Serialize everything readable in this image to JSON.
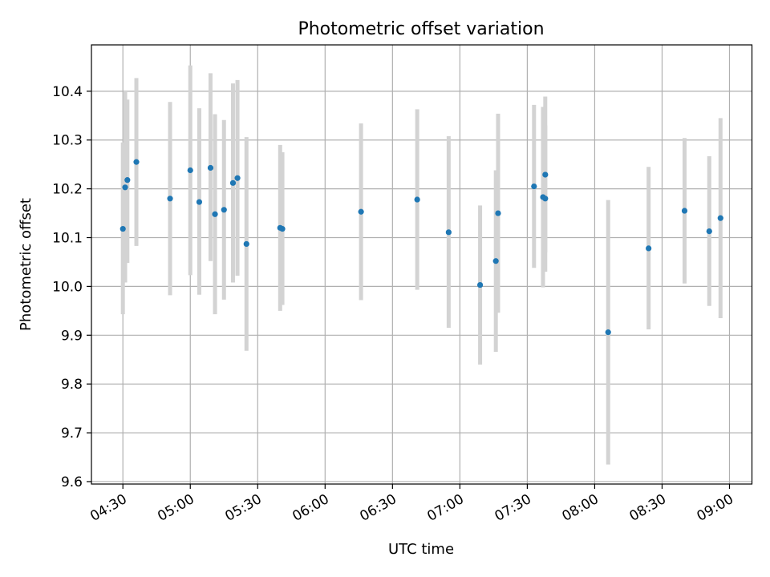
{
  "chart_data": {
    "type": "scatter",
    "title": "Photometric offset variation",
    "xlabel": "UTC time",
    "ylabel": "Photometric offset",
    "ylim": [
      9.595,
      10.495
    ],
    "xlim": [
      "04:16",
      "09:10"
    ],
    "grid": true,
    "x_ticks": [
      "04:30",
      "05:00",
      "05:30",
      "06:00",
      "06:30",
      "07:00",
      "07:30",
      "08:00",
      "08:30",
      "09:00"
    ],
    "y_ticks": [
      "9.6",
      "9.7",
      "9.8",
      "9.9",
      "10.0",
      "10.1",
      "10.2",
      "10.3",
      "10.4"
    ],
    "colors": {
      "points": "#1f77b4",
      "errorbars": "#d3d3d3",
      "grid": "#b0b0b0"
    },
    "series": [
      {
        "points": [
          {
            "x": "04:30",
            "y": 10.118,
            "ylo": 9.943,
            "yhi": 10.295
          },
          {
            "x": "04:31",
            "y": 10.203,
            "ylo": 10.008,
            "yhi": 10.398
          },
          {
            "x": "04:32",
            "y": 10.218,
            "ylo": 10.048,
            "yhi": 10.383
          },
          {
            "x": "04:36",
            "y": 10.255,
            "ylo": 10.083,
            "yhi": 10.427
          },
          {
            "x": "04:51",
            "y": 10.18,
            "ylo": 9.982,
            "yhi": 10.378
          },
          {
            "x": "05:00",
            "y": 10.238,
            "ylo": 10.023,
            "yhi": 10.453
          },
          {
            "x": "05:04",
            "y": 10.173,
            "ylo": 9.983,
            "yhi": 10.365
          },
          {
            "x": "05:09",
            "y": 10.243,
            "ylo": 10.052,
            "yhi": 10.437
          },
          {
            "x": "05:11",
            "y": 10.148,
            "ylo": 9.943,
            "yhi": 10.353
          },
          {
            "x": "05:15",
            "y": 10.157,
            "ylo": 9.973,
            "yhi": 10.341
          },
          {
            "x": "05:19",
            "y": 10.212,
            "ylo": 10.008,
            "yhi": 10.416
          },
          {
            "x": "05:21",
            "y": 10.222,
            "ylo": 10.022,
            "yhi": 10.423
          },
          {
            "x": "05:25",
            "y": 10.087,
            "ylo": 9.868,
            "yhi": 10.306
          },
          {
            "x": "05:40",
            "y": 10.12,
            "ylo": 9.95,
            "yhi": 10.29
          },
          {
            "x": "05:41",
            "y": 10.118,
            "ylo": 9.962,
            "yhi": 10.275
          },
          {
            "x": "06:16",
            "y": 10.153,
            "ylo": 9.972,
            "yhi": 10.334
          },
          {
            "x": "06:41",
            "y": 10.178,
            "ylo": 9.993,
            "yhi": 10.363
          },
          {
            "x": "06:55",
            "y": 10.111,
            "ylo": 9.915,
            "yhi": 10.308
          },
          {
            "x": "07:09",
            "y": 10.003,
            "ylo": 9.84,
            "yhi": 10.166
          },
          {
            "x": "07:16",
            "y": 10.052,
            "ylo": 9.866,
            "yhi": 10.238
          },
          {
            "x": "07:17",
            "y": 10.15,
            "ylo": 9.946,
            "yhi": 10.354
          },
          {
            "x": "07:33",
            "y": 10.205,
            "ylo": 10.038,
            "yhi": 10.372
          },
          {
            "x": "07:37",
            "y": 10.183,
            "ylo": 9.998,
            "yhi": 10.368
          },
          {
            "x": "07:38",
            "y": 10.229,
            "ylo": 10.07,
            "yhi": 10.389
          },
          {
            "x": "07:38",
            "y": 10.18,
            "ylo": 10.03,
            "yhi": 10.33
          },
          {
            "x": "08:06",
            "y": 9.906,
            "ylo": 9.635,
            "yhi": 10.177
          },
          {
            "x": "08:24",
            "y": 10.078,
            "ylo": 9.912,
            "yhi": 10.245
          },
          {
            "x": "08:40",
            "y": 10.155,
            "ylo": 10.006,
            "yhi": 10.304
          },
          {
            "x": "08:51",
            "y": 10.113,
            "ylo": 9.96,
            "yhi": 10.267
          },
          {
            "x": "08:56",
            "y": 10.14,
            "ylo": 9.935,
            "yhi": 10.345
          }
        ]
      }
    ]
  }
}
